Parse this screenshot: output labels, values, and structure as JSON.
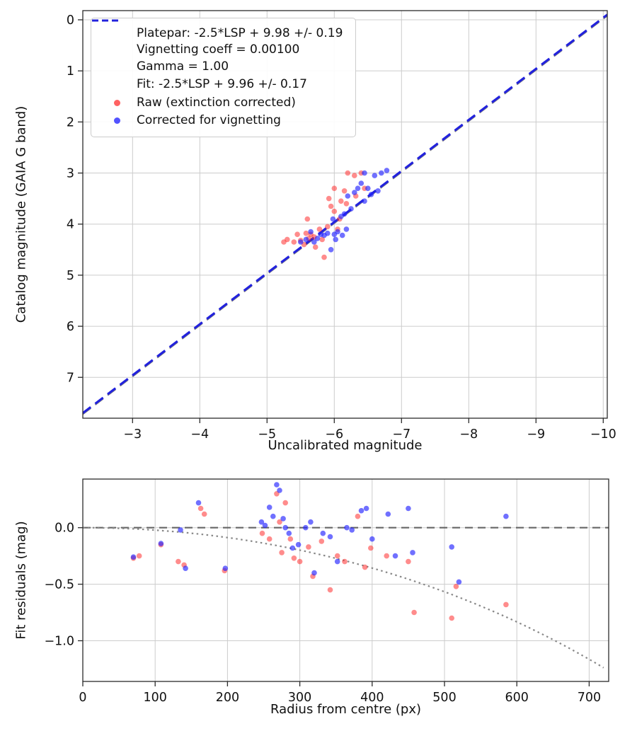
{
  "figure": {
    "background": "#ffffff"
  },
  "colors": {
    "grid": "#cccccc",
    "spine": "#2b2b2b",
    "tick_text": "#111111",
    "platepar_line": "#808080",
    "fit_line": "#2222dd",
    "raw_point": "rgba(255,45,45,0.55)",
    "corrected_point": "rgba(35,35,255,0.65)",
    "zero_line": "#666666",
    "vignetting_curve": "#888888"
  },
  "legend": {
    "position": "upper left",
    "entries": [
      {
        "type": "dash",
        "color": "#808080",
        "label": "Platepar: -2.5*LSP + 9.98 +/- 0.19\nVignetting coeff = 0.00100\nGamma = 1.00"
      },
      {
        "type": "dash",
        "color": "#2222dd",
        "label": "Fit: -2.5*LSP + 9.96 +/- 0.17"
      },
      {
        "type": "dot",
        "color": "rgba(255,45,45,0.75)",
        "label": "Raw (extinction corrected)"
      },
      {
        "type": "dot",
        "color": "rgba(35,35,255,0.78)",
        "label": "Corrected for vignetting"
      }
    ]
  },
  "chart_data": [
    {
      "type": "scatter",
      "title": "",
      "xlabel": "Uncalibrated magnitude",
      "ylabel": "Catalog magnitude (GAIA G band)",
      "xlim_lr": [
        -2.26,
        -10.06
      ],
      "ylim_tb": [
        -0.18,
        7.8
      ],
      "grid": true,
      "x_ticks": [
        -3,
        -4,
        -5,
        -6,
        -7,
        -8,
        -9,
        -10
      ],
      "x_tick_labels": [
        "−3",
        "−4",
        "−5",
        "−6",
        "−7",
        "−8",
        "−9",
        "−10"
      ],
      "y_ticks": [
        0,
        1,
        2,
        3,
        4,
        5,
        6,
        7
      ],
      "y_tick_labels": [
        "0",
        "1",
        "2",
        "3",
        "4",
        "5",
        "6",
        "7"
      ],
      "fit_lines": [
        {
          "name": "platepar-line",
          "slope": 1,
          "intercept": 9.98,
          "color": "#808080",
          "width": 2.4
        },
        {
          "name": "fit-line",
          "slope": 1,
          "intercept": 9.96,
          "color": "#2222dd",
          "width": 3.2
        }
      ],
      "series": [
        {
          "name": "Raw (extinction corrected)",
          "color": "rgba(255,45,45,0.55)",
          "points": [
            [
              -5.25,
              4.35
            ],
            [
              -5.3,
              4.3
            ],
            [
              -5.4,
              4.35
            ],
            [
              -5.45,
              4.2
            ],
            [
              -5.5,
              4.32
            ],
            [
              -5.55,
              4.4
            ],
            [
              -5.58,
              4.18
            ],
            [
              -5.6,
              3.9
            ],
            [
              -5.62,
              4.28
            ],
            [
              -5.65,
              4.2
            ],
            [
              -5.7,
              4.25
            ],
            [
              -5.72,
              4.45
            ],
            [
              -5.78,
              4.1
            ],
            [
              -5.82,
              4.3
            ],
            [
              -5.85,
              4.65
            ],
            [
              -5.9,
              4.05
            ],
            [
              -5.92,
              3.5
            ],
            [
              -5.95,
              3.65
            ],
            [
              -6.0,
              3.3
            ],
            [
              -6.0,
              3.75
            ],
            [
              -6.05,
              4.1
            ],
            [
              -6.08,
              3.9
            ],
            [
              -6.1,
              3.55
            ],
            [
              -6.15,
              3.35
            ],
            [
              -6.18,
              3.6
            ],
            [
              -6.2,
              3.0
            ],
            [
              -6.3,
              3.05
            ],
            [
              -6.32,
              3.45
            ],
            [
              -6.4,
              3.0
            ],
            [
              -6.45,
              3.3
            ]
          ]
        },
        {
          "name": "Corrected for vignetting",
          "color": "rgba(35,35,255,0.65)",
          "points": [
            [
              -5.5,
              4.35
            ],
            [
              -5.58,
              4.3
            ],
            [
              -5.65,
              4.15
            ],
            [
              -5.7,
              4.35
            ],
            [
              -5.75,
              4.28
            ],
            [
              -5.8,
              4.2
            ],
            [
              -5.85,
              4.22
            ],
            [
              -5.9,
              4.18
            ],
            [
              -5.95,
              4.5
            ],
            [
              -5.98,
              3.9
            ],
            [
              -6.0,
              4.2
            ],
            [
              -6.02,
              4.3
            ],
            [
              -6.05,
              4.15
            ],
            [
              -6.1,
              3.85
            ],
            [
              -6.12,
              4.22
            ],
            [
              -6.15,
              3.8
            ],
            [
              -6.18,
              4.1
            ],
            [
              -6.2,
              3.45
            ],
            [
              -6.25,
              3.7
            ],
            [
              -6.3,
              3.38
            ],
            [
              -6.35,
              3.3
            ],
            [
              -6.4,
              3.2
            ],
            [
              -6.45,
              3.55
            ],
            [
              -6.45,
              3.0
            ],
            [
              -6.5,
              3.3
            ],
            [
              -6.55,
              3.42
            ],
            [
              -6.6,
              3.05
            ],
            [
              -6.65,
              3.35
            ],
            [
              -6.7,
              3.0
            ],
            [
              -6.78,
              2.95
            ]
          ]
        }
      ]
    },
    {
      "type": "scatter",
      "title": "",
      "xlabel": "Radius from centre (px)",
      "ylabel": "Fit residuals (mag)",
      "xlim_lr": [
        0,
        727
      ],
      "ylim_tb": [
        0.43,
        -1.36
      ],
      "grid": true,
      "x_ticks": [
        0,
        100,
        200,
        300,
        400,
        500,
        600,
        700
      ],
      "x_tick_labels": [
        "0",
        "100",
        "200",
        "300",
        "400",
        "500",
        "600",
        "700"
      ],
      "y_ticks": [
        0,
        -0.5,
        -1.0
      ],
      "y_tick_labels": [
        "0.0",
        "−0.5",
        "−1.0"
      ],
      "zero_line_y": 0,
      "vignetting_coeff": 0.001,
      "series": [
        {
          "name": "Raw (extinction corrected)",
          "color": "rgba(255,45,45,0.55)",
          "points": [
            [
              70,
              -0.27
            ],
            [
              78,
              -0.25
            ],
            [
              108,
              -0.15
            ],
            [
              132,
              -0.3
            ],
            [
              140,
              -0.33
            ],
            [
              163,
              0.17
            ],
            [
              168,
              0.12
            ],
            [
              196,
              -0.38
            ],
            [
              248,
              -0.05
            ],
            [
              258,
              -0.1
            ],
            [
              268,
              0.3
            ],
            [
              272,
              0.05
            ],
            [
              275,
              -0.22
            ],
            [
              280,
              0.22
            ],
            [
              287,
              -0.1
            ],
            [
              292,
              -0.27
            ],
            [
              300,
              -0.3
            ],
            [
              312,
              -0.17
            ],
            [
              318,
              -0.43
            ],
            [
              330,
              -0.12
            ],
            [
              342,
              -0.55
            ],
            [
              352,
              -0.25
            ],
            [
              362,
              -0.3
            ],
            [
              380,
              0.1
            ],
            [
              390,
              -0.35
            ],
            [
              398,
              -0.18
            ],
            [
              420,
              -0.25
            ],
            [
              450,
              -0.3
            ],
            [
              458,
              -0.75
            ],
            [
              510,
              -0.8
            ],
            [
              516,
              -0.52
            ],
            [
              585,
              -0.68
            ]
          ]
        },
        {
          "name": "Corrected for vignetting",
          "color": "rgba(35,35,255,0.65)",
          "points": [
            [
              70,
              -0.26
            ],
            [
              108,
              -0.14
            ],
            [
              135,
              -0.02
            ],
            [
              142,
              -0.36
            ],
            [
              160,
              0.22
            ],
            [
              197,
              -0.36
            ],
            [
              247,
              0.05
            ],
            [
              252,
              0.02
            ],
            [
              258,
              0.18
            ],
            [
              263,
              0.1
            ],
            [
              268,
              0.38
            ],
            [
              272,
              0.33
            ],
            [
              277,
              0.08
            ],
            [
              280,
              0.0
            ],
            [
              285,
              -0.05
            ],
            [
              290,
              -0.18
            ],
            [
              298,
              -0.15
            ],
            [
              308,
              0.0
            ],
            [
              315,
              0.05
            ],
            [
              320,
              -0.4
            ],
            [
              332,
              -0.05
            ],
            [
              342,
              -0.08
            ],
            [
              352,
              -0.3
            ],
            [
              365,
              0.0
            ],
            [
              372,
              -0.02
            ],
            [
              385,
              0.15
            ],
            [
              392,
              0.17
            ],
            [
              400,
              -0.1
            ],
            [
              422,
              0.12
            ],
            [
              432,
              -0.25
            ],
            [
              450,
              0.17
            ],
            [
              456,
              -0.22
            ],
            [
              510,
              -0.17
            ],
            [
              520,
              -0.48
            ],
            [
              585,
              0.1
            ]
          ]
        }
      ]
    }
  ]
}
